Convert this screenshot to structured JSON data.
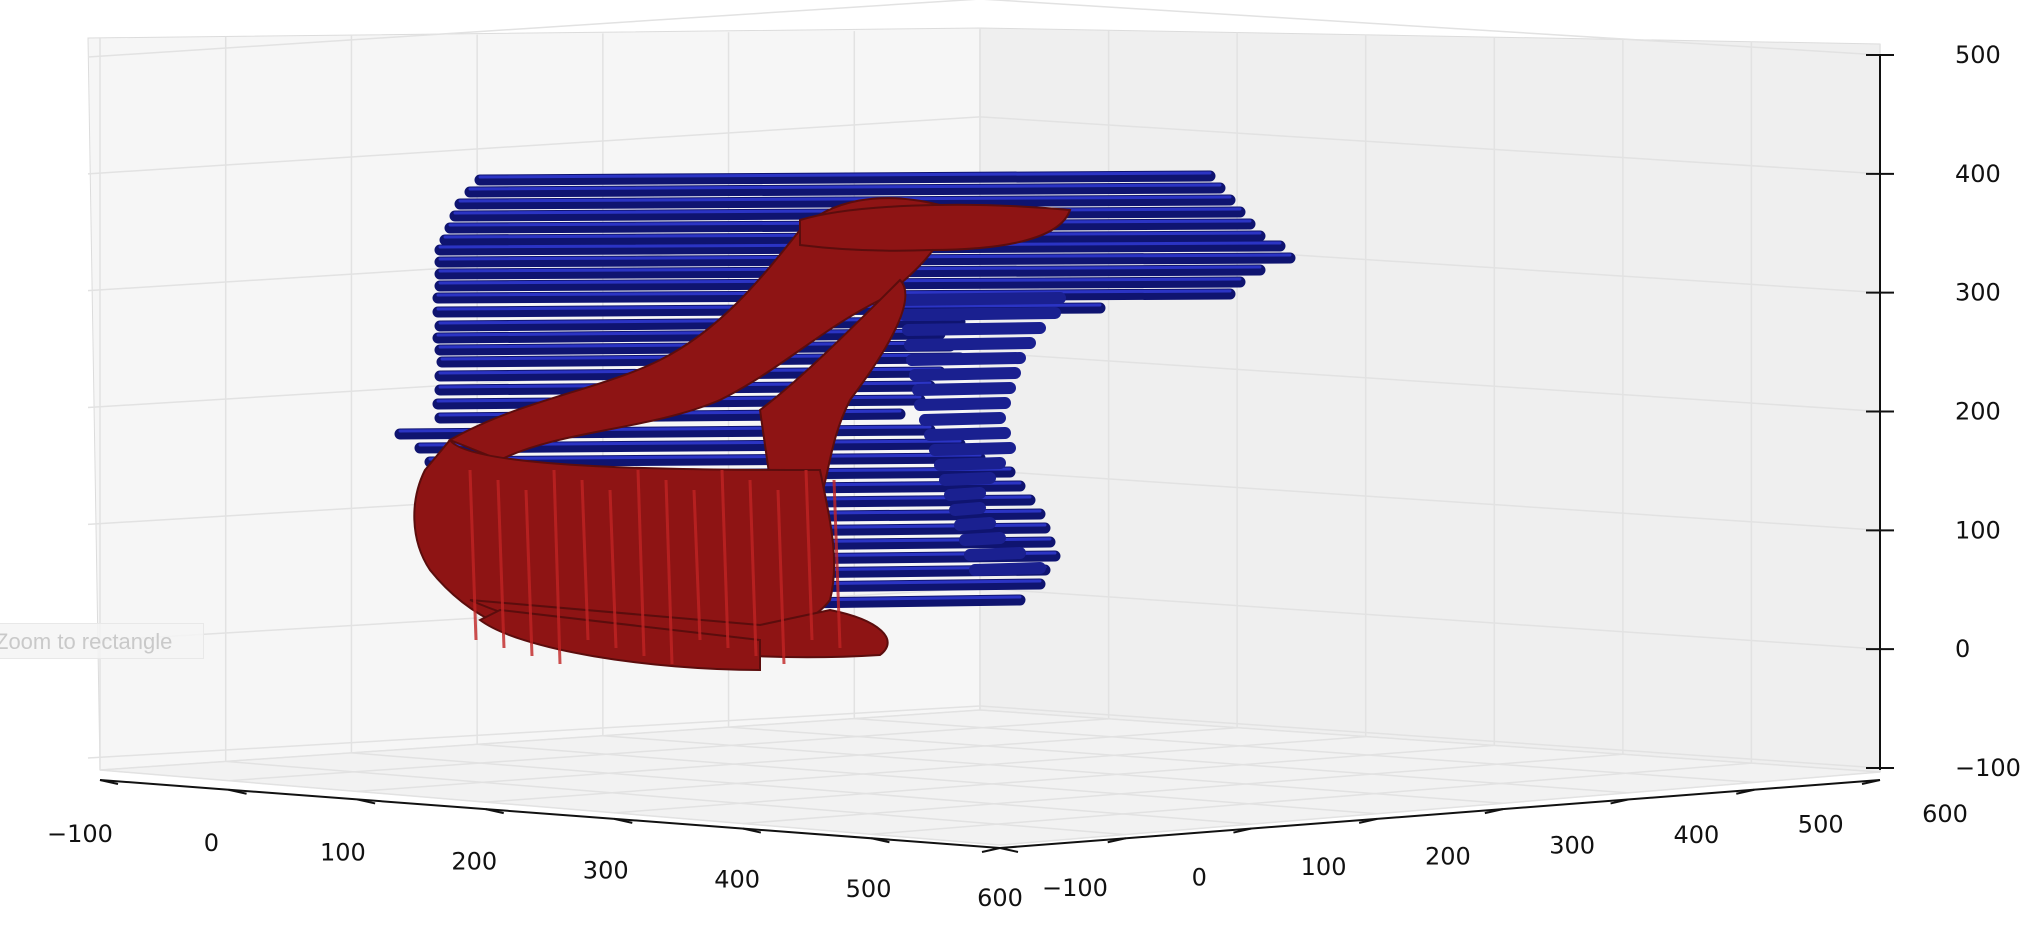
{
  "tooltip": {
    "text": "Zoom to rectangle"
  },
  "chart_data": {
    "type": "scatter",
    "projection": "3d",
    "title": "",
    "xlabel": "",
    "ylabel": "",
    "zlabel": "",
    "x_ticks": [
      "−100",
      "0",
      "100",
      "200",
      "300",
      "400",
      "500",
      "600"
    ],
    "y_ticks": [
      "−100",
      "0",
      "100",
      "200",
      "300",
      "400",
      "500",
      "600"
    ],
    "z_ticks": [
      "−100",
      "0",
      "100",
      "200",
      "300",
      "400",
      "500"
    ],
    "xlim": [
      -100,
      600
    ],
    "ylim": [
      -100,
      600
    ],
    "zlim": [
      -100,
      500
    ],
    "grid": true,
    "series": [
      {
        "color": "#1a1f9e",
        "marker": "o",
        "description_range": {
          "z": [
            120,
            400
          ]
        }
      },
      {
        "color": "#b01c1c",
        "marker": "o",
        "description_range": {
          "z": [
            10,
            390
          ]
        }
      }
    ],
    "colors": {
      "pane_left": "#f6f6f6",
      "pane_right": "#efefef",
      "pane_floor": "#f2f2f2",
      "grid": "#e3e3e3"
    }
  }
}
